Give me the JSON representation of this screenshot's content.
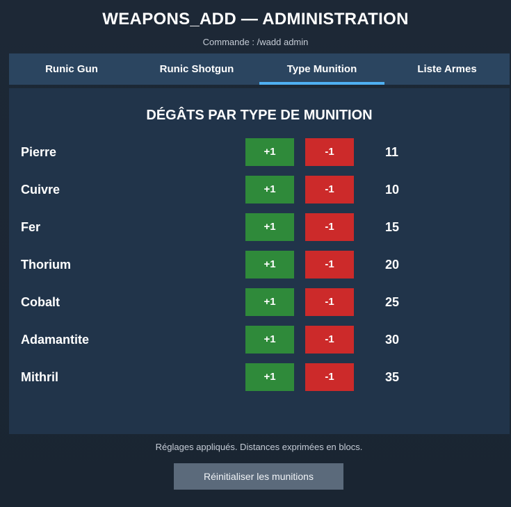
{
  "header": {
    "title": "WEAPONS_ADD — ADMINISTRATION",
    "subtitle": "Commande : /wadd admin"
  },
  "tabs": [
    {
      "label": "Runic Gun",
      "active": false
    },
    {
      "label": "Runic Shotgun",
      "active": false
    },
    {
      "label": "Type Munition",
      "active": true
    },
    {
      "label": "Liste Armes",
      "active": false
    }
  ],
  "panel": {
    "title": "DÉGÂTS PAR TYPE DE MUNITION",
    "plus_label": "+1",
    "minus_label": "-1",
    "rows": [
      {
        "name": "Pierre",
        "value": "11"
      },
      {
        "name": "Cuivre",
        "value": "10"
      },
      {
        "name": "Fer",
        "value": "15"
      },
      {
        "name": "Thorium",
        "value": "20"
      },
      {
        "name": "Cobalt",
        "value": "25"
      },
      {
        "name": "Adamantite",
        "value": "30"
      },
      {
        "name": "Mithril",
        "value": "35"
      }
    ]
  },
  "footer": {
    "status": "Réglages appliqués. Distances exprimées en blocs.",
    "reset_label": "Réinitialiser les munitions"
  },
  "colors": {
    "plus_button": "#2f8a3a",
    "minus_button": "#cc2a2a",
    "active_tab_indicator": "#4fb0f2",
    "tab_bar": "#2b4560",
    "panel": "#21344a"
  }
}
